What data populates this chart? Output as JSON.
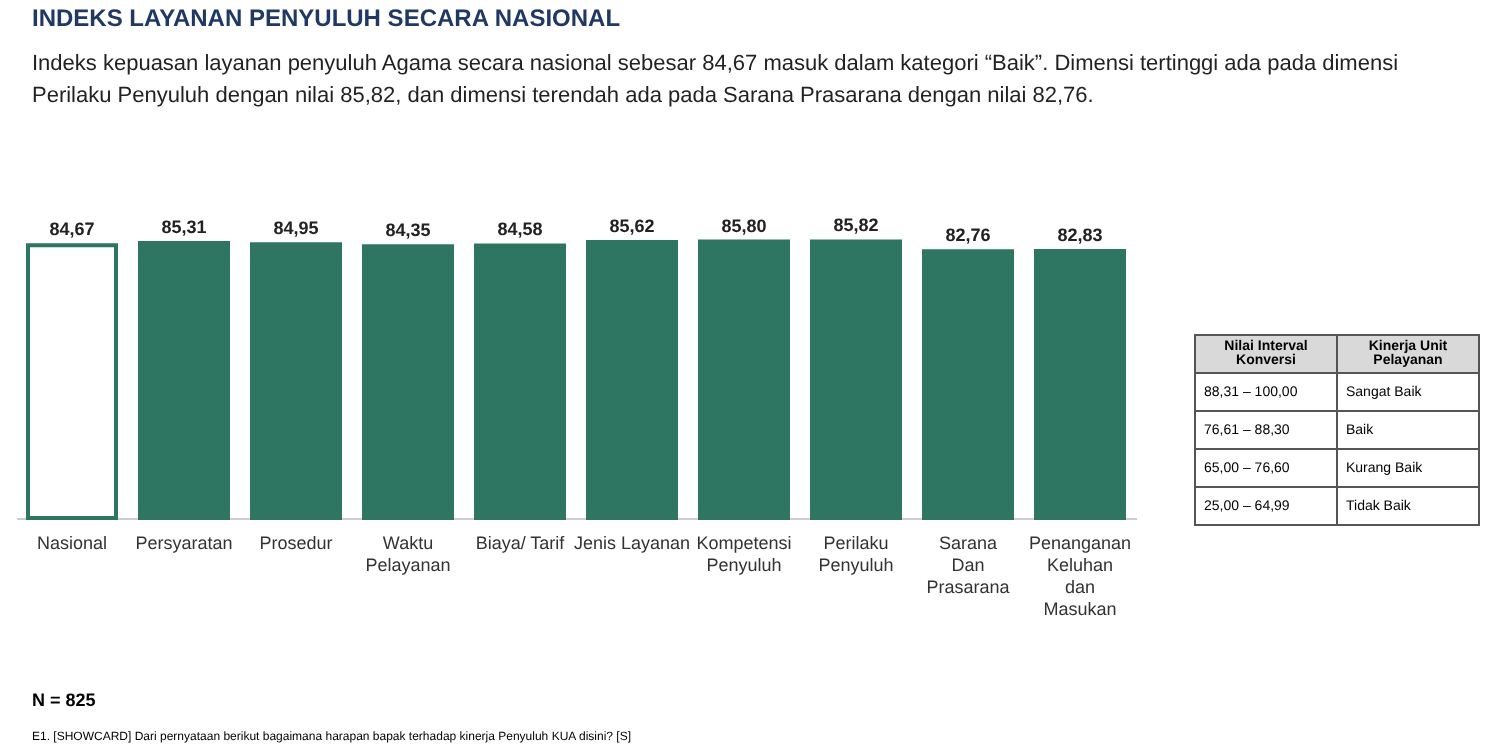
{
  "chart_data": {
    "type": "bar",
    "title": "INDEKS LAYANAN PENYULUH SECARA NASIONAL",
    "subtitle": "Indeks kepuasan layanan penyuluh Agama secara nasional sebesar 84,67 masuk dalam kategori “Baik”. Dimensi tertinggi ada pada dimensi Perilaku Penyuluh dengan nilai 85,82, dan dimensi terendah ada pada Sarana Prasarana dengan nilai 82,76.",
    "categories": [
      "Nasional",
      "Persyaratan",
      "Prosedur",
      "Waktu Pelayanan",
      "Biaya/ Tarif",
      "Jenis Layanan",
      "Kompetensi Penyuluh",
      "Perilaku Penyuluh",
      "Sarana Dan Prasarana",
      "Penanganan Keluhan dan Masukan"
    ],
    "values": [
      84.67,
      85.31,
      84.95,
      84.35,
      84.58,
      85.62,
      85.8,
      85.82,
      82.76,
      82.83
    ],
    "value_labels": [
      "84,67",
      "85,31",
      "84,95",
      "84,35",
      "84,58",
      "85,62",
      "85,80",
      "85,82",
      "82,76",
      "82,83"
    ],
    "colors": [
      "#ffffff",
      "#2e7562",
      "#2e7562",
      "#2e7562",
      "#2e7562",
      "#2e7562",
      "#2e7562",
      "#2e7562",
      "#2e7562",
      "#2e7562"
    ],
    "annotations": [
      "N = 825",
      "E1. [SHOWCARD] Dari pernyataan berikut bagaimana harapan bapak terhadap kinerja Penyuluh KUA disini? [S]",
      "Nilai Interval Konversi",
      "Kinerja Unit Pelayanan",
      "88,31 – 100,00",
      "Sangat Baik",
      "76,61 – 88,30",
      "Baik",
      "65,00 – 76,60",
      "Kurang Baik",
      "25,00 – 64,99",
      "Tidak Baik"
    ]
  }
}
